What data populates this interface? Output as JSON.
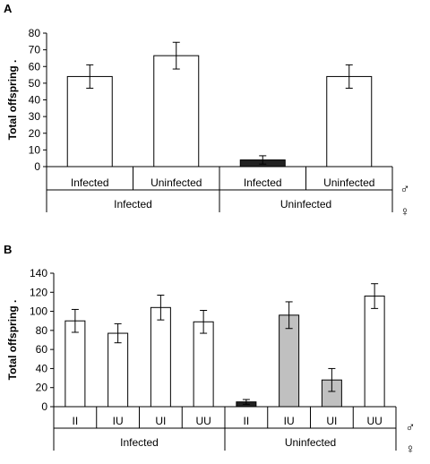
{
  "chart_data": [
    {
      "panel_label": "A",
      "type": "bar",
      "ylabel": "Total offspring .",
      "ylim": [
        0,
        80
      ],
      "yticks": [
        0,
        10,
        20,
        30,
        40,
        50,
        60,
        70,
        80
      ],
      "grid": false,
      "categories": [
        "Infected",
        "Uninfected",
        "Infected",
        "Uninfected"
      ],
      "groups": [
        {
          "label": "Infected",
          "size": 2
        },
        {
          "label": "Uninfected",
          "size": 2
        }
      ],
      "male_symbol": "♂",
      "female_symbol": "♀",
      "values": [
        54,
        66.5,
        4,
        54
      ],
      "errors": [
        7,
        8,
        2.5,
        7
      ],
      "colors": [
        "#ffffff",
        "#ffffff",
        "#222222",
        "#ffffff"
      ]
    },
    {
      "panel_label": "B",
      "type": "bar",
      "ylabel": "Total offspring .",
      "ylim": [
        0,
        140
      ],
      "yticks": [
        0,
        20,
        40,
        60,
        80,
        100,
        120,
        140
      ],
      "grid": false,
      "categories": [
        "II",
        "IU",
        "UI",
        "UU",
        "II",
        "IU",
        "UI",
        "UU"
      ],
      "groups": [
        {
          "label": "Infected",
          "size": 4
        },
        {
          "label": "Uninfected",
          "size": 4
        }
      ],
      "male_symbol": "♂",
      "female_symbol": "♀",
      "values": [
        90,
        77,
        104,
        89,
        5,
        96,
        28,
        116
      ],
      "errors": [
        12,
        10,
        13,
        12,
        2.5,
        14,
        12,
        13
      ],
      "colors": [
        "#ffffff",
        "#ffffff",
        "#ffffff",
        "#ffffff",
        "#222222",
        "#c0c0c0",
        "#c0c0c0",
        "#ffffff"
      ]
    }
  ]
}
